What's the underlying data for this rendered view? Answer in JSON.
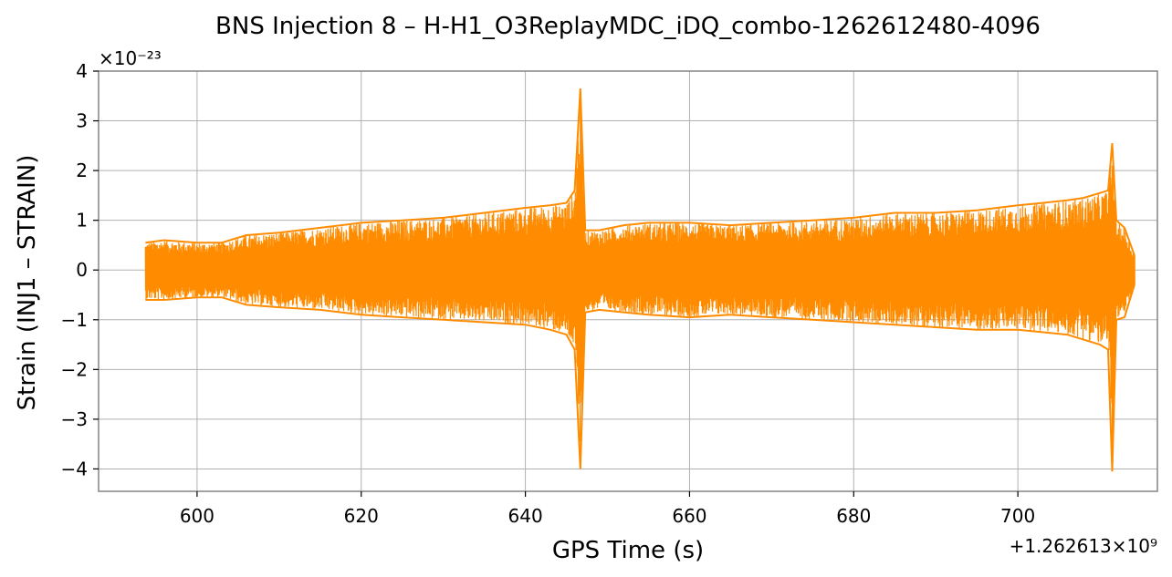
{
  "chart_data": {
    "type": "line",
    "title": "BNS Injection 8 – H-H1_O3ReplayMDC_iDQ_combo-1262612480-4096",
    "xlabel": "GPS Time (s)",
    "ylabel": "Strain (INJ1 – STRAIN)",
    "x_offset_text": "+1.262613×10⁹",
    "y_scale_text": "×10⁻²³",
    "x_offset": 1262613000,
    "y_scale": 1e-23,
    "xlim": [
      588,
      717
    ],
    "ylim": [
      -4.45,
      4.0
    ],
    "x_ticks": [
      600,
      620,
      640,
      660,
      680,
      700
    ],
    "x_tick_labels": [
      "600",
      "620",
      "640",
      "660",
      "680",
      "700"
    ],
    "y_ticks": [
      -4,
      -3,
      -2,
      -1,
      0,
      1,
      2,
      3,
      4
    ],
    "y_tick_labels": [
      "−4",
      "−3",
      "−2",
      "−1",
      "0",
      "1",
      "2",
      "3",
      "4"
    ],
    "grid": true,
    "series": [
      {
        "color": "#ff8c00",
        "x_range": [
          593.7,
          714.2
        ],
        "envelope_x": [
          593.7,
          596,
          600,
          603,
          606,
          610,
          615,
          620,
          625,
          630,
          635,
          640,
          643,
          645,
          646,
          646.7,
          647.3,
          649,
          652,
          655,
          660,
          665,
          670,
          675,
          680,
          685,
          690,
          695,
          700,
          703,
          706,
          708,
          710,
          711,
          711.5,
          712,
          713,
          714.2
        ],
        "envelope_upper": [
          0.55,
          0.6,
          0.55,
          0.55,
          0.7,
          0.75,
          0.85,
          0.95,
          1.0,
          1.05,
          1.15,
          1.25,
          1.3,
          1.35,
          1.6,
          3.65,
          0.8,
          0.8,
          0.9,
          0.95,
          0.95,
          0.9,
          0.95,
          1.0,
          1.05,
          1.15,
          1.15,
          1.2,
          1.3,
          1.35,
          1.4,
          1.45,
          1.55,
          1.6,
          2.55,
          1.0,
          0.85,
          0.3
        ],
        "envelope_lower": [
          -0.6,
          -0.6,
          -0.55,
          -0.55,
          -0.7,
          -0.75,
          -0.8,
          -0.9,
          -0.95,
          -1.0,
          -1.05,
          -1.1,
          -1.2,
          -1.3,
          -1.6,
          -4.0,
          -0.85,
          -0.8,
          -0.85,
          -0.9,
          -0.95,
          -0.9,
          -0.95,
          -1.0,
          -1.05,
          -1.1,
          -1.15,
          -1.2,
          -1.2,
          -1.25,
          -1.3,
          -1.4,
          -1.5,
          -1.6,
          -4.05,
          -1.0,
          -0.95,
          -0.3
        ]
      }
    ]
  }
}
